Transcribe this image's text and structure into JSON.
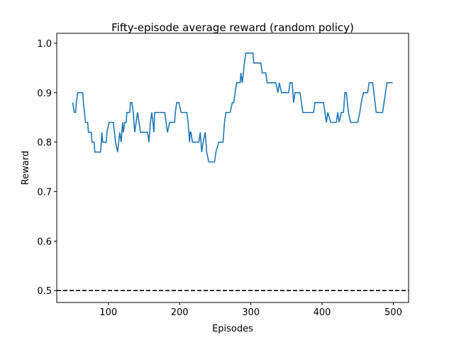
{
  "chart_data": {
    "type": "line",
    "title": "Fifty-episode average reward (random policy)",
    "x_label": "Episodes",
    "y_label": "Reward",
    "xlim": [
      27.55,
      521.45
    ],
    "ylim": [
      0.476,
      1.02
    ],
    "xticks": [
      100,
      200,
      300,
      400,
      500
    ],
    "yticks": [
      0.5,
      0.6,
      0.7,
      0.8,
      0.9,
      {
        "value": 1,
        "label": "1.0"
      }
    ],
    "reference_line": {
      "value": 0.5,
      "color": "#000000",
      "style": "dashed"
    },
    "series": [
      {
        "color": "#1f77b4",
        "x": [
          50,
          52,
          54,
          55,
          57,
          64,
          65,
          68,
          71,
          72,
          76,
          77,
          80,
          81,
          89,
          91,
          92,
          97,
          98,
          101,
          107,
          110,
          113,
          116,
          118,
          120,
          121,
          123,
          125,
          126,
          130,
          131,
          133,
          135,
          137,
          141,
          143,
          145,
          155,
          157,
          159,
          161,
          164,
          165,
          179,
          181,
          183,
          186,
          193,
          194,
          196,
          199,
          202,
          210,
          212,
          214,
          215,
          216,
          218,
          227,
          229,
          231,
          233,
          236,
          238,
          241,
          249,
          251,
          255,
          261,
          263,
          265,
          271,
          274,
          276,
          278,
          280,
          285,
          286,
          288,
          291,
          293,
          303,
          304,
          314,
          316,
          321,
          323,
          335,
          338,
          340,
          343,
          353,
          355,
          358,
          360,
          362,
          369,
          371,
          373,
          388,
          390,
          402,
          404,
          406,
          408,
          412,
          420,
          422,
          424,
          427,
          430,
          432,
          434,
          437,
          440,
          450,
          453,
          455,
          458,
          464,
          466,
          471,
          476,
          485,
          487,
          489,
          491,
          499
        ],
        "values": [
          0.88,
          0.86,
          0.86,
          0.88,
          0.9,
          0.9,
          0.88,
          0.84,
          0.84,
          0.82,
          0.82,
          0.8,
          0.8,
          0.78,
          0.78,
          0.82,
          0.8,
          0.8,
          0.82,
          0.84,
          0.84,
          0.8,
          0.78,
          0.82,
          0.8,
          0.84,
          0.82,
          0.84,
          0.84,
          0.86,
          0.86,
          0.88,
          0.88,
          0.86,
          0.82,
          0.86,
          0.84,
          0.82,
          0.82,
          0.8,
          0.84,
          0.86,
          0.82,
          0.86,
          0.86,
          0.84,
          0.82,
          0.84,
          0.84,
          0.86,
          0.88,
          0.88,
          0.86,
          0.86,
          0.84,
          0.8,
          0.82,
          0.82,
          0.8,
          0.8,
          0.82,
          0.78,
          0.8,
          0.82,
          0.78,
          0.76,
          0.76,
          0.78,
          0.8,
          0.8,
          0.84,
          0.86,
          0.86,
          0.88,
          0.88,
          0.9,
          0.92,
          0.92,
          0.94,
          0.92,
          0.96,
          0.98,
          0.98,
          0.96,
          0.96,
          0.94,
          0.94,
          0.92,
          0.92,
          0.9,
          0.92,
          0.9,
          0.9,
          0.92,
          0.92,
          0.88,
          0.9,
          0.9,
          0.88,
          0.86,
          0.86,
          0.88,
          0.88,
          0.86,
          0.84,
          0.86,
          0.84,
          0.84,
          0.86,
          0.84,
          0.86,
          0.86,
          0.9,
          0.9,
          0.86,
          0.84,
          0.84,
          0.86,
          0.88,
          0.9,
          0.9,
          0.92,
          0.92,
          0.86,
          0.86,
          0.88,
          0.9,
          0.92,
          0.92
        ]
      }
    ]
  }
}
